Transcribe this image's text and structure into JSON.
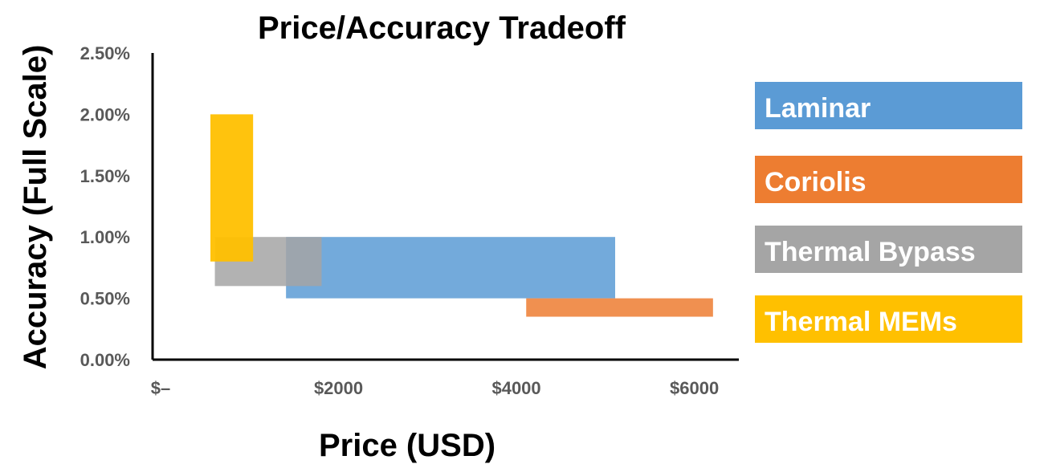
{
  "chart_data": {
    "type": "bar",
    "title": "Price/Accuracy Tradeoff",
    "xlabel": "Price (USD)",
    "ylabel": "Accuracy (Full Scale)",
    "x_ticks": [
      "$–",
      "$2000",
      "$4000",
      "$6000"
    ],
    "y_ticks": [
      "0.00%",
      "0.50%",
      "1.00%",
      "1.50%",
      "2.00%",
      "2.50%"
    ],
    "xlim": [
      0,
      6500
    ],
    "ylim": [
      0,
      2.5
    ],
    "grid": false,
    "legend_position": "right",
    "series": [
      {
        "name": "Laminar",
        "color": "#5B9BD5",
        "price_range": [
          1500,
          5200
        ],
        "accuracy_range": [
          0.5,
          1.0
        ]
      },
      {
        "name": "Coriolis",
        "color": "#ED7D31",
        "price_range": [
          4200,
          6300
        ],
        "accuracy_range": [
          0.35,
          0.5
        ]
      },
      {
        "name": "Thermal Bypass",
        "color": "#A5A5A5",
        "price_range": [
          700,
          1900
        ],
        "accuracy_range": [
          0.6,
          1.0
        ]
      },
      {
        "name": "Thermal MEMs",
        "color": "#FFC000",
        "price_range": [
          650,
          1130
        ],
        "accuracy_range": [
          0.8,
          2.0
        ]
      }
    ]
  }
}
